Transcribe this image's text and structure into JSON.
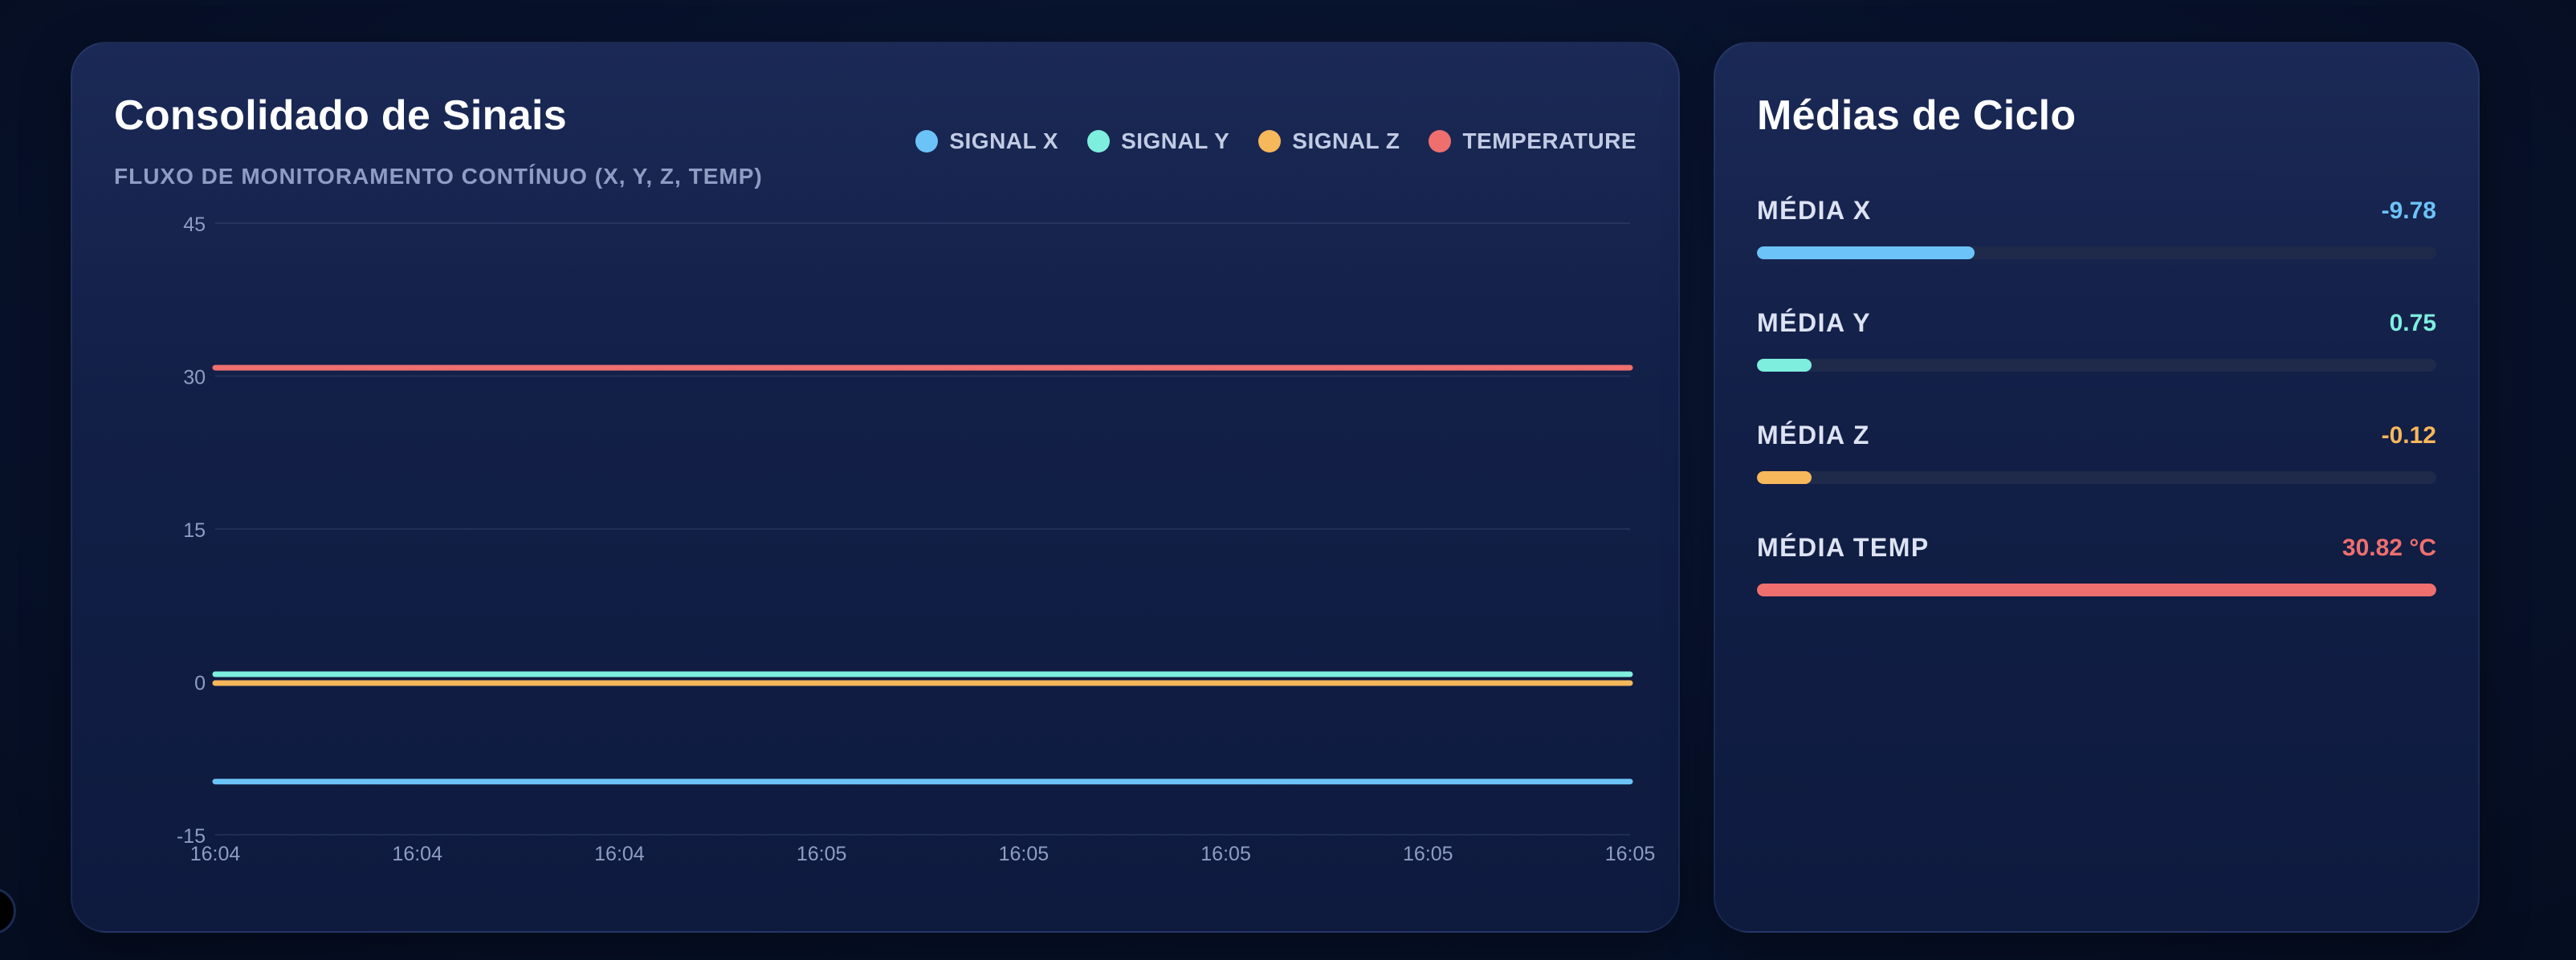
{
  "chart_card": {
    "title": "Consolidado de Sinais",
    "subtitle": "FLUXO DE MONITORAMENTO CONTÍNUO (X, Y, Z, TEMP)"
  },
  "legend": [
    {
      "label": "SIGNAL X",
      "color": "#6cc3f7"
    },
    {
      "label": "SIGNAL Y",
      "color": "#7eeede"
    },
    {
      "label": "SIGNAL Z",
      "color": "#f7b75b"
    },
    {
      "label": "TEMPERATURE",
      "color": "#ef6f6f"
    }
  ],
  "chart_data": {
    "type": "line",
    "x": [
      "16:04",
      "16:04",
      "16:04",
      "16:05",
      "16:05",
      "16:05",
      "16:05",
      "16:05"
    ],
    "ylim": [
      -15,
      45
    ],
    "yticks": [
      45,
      30,
      15,
      0,
      -15
    ],
    "grid": true,
    "legend_position": "top-right",
    "series": [
      {
        "name": "SIGNAL X",
        "color": "#6cc3f7",
        "values": [
          -9.78,
          -9.78,
          -9.78,
          -9.78,
          -9.78,
          -9.78,
          -9.78,
          -9.78
        ]
      },
      {
        "name": "SIGNAL Y",
        "color": "#7eeede",
        "values": [
          0.75,
          0.75,
          0.75,
          0.75,
          0.75,
          0.75,
          0.75,
          0.75
        ]
      },
      {
        "name": "SIGNAL Z",
        "color": "#f7b75b",
        "values": [
          -0.12,
          -0.12,
          -0.12,
          -0.12,
          -0.12,
          -0.12,
          -0.12,
          -0.12
        ]
      },
      {
        "name": "TEMPERATURE",
        "color": "#ef6f6f",
        "values": [
          30.82,
          30.82,
          30.82,
          30.82,
          30.82,
          30.82,
          30.82,
          30.82
        ]
      }
    ]
  },
  "averages_card": {
    "title": "Médias de Ciclo",
    "items": [
      {
        "label": "MÉDIA X",
        "value": "-9.78",
        "color": "#6cc3f7",
        "fill_fraction": 0.32
      },
      {
        "label": "MÉDIA Y",
        "value": "0.75",
        "color": "#7eeede",
        "fill_fraction": 0.08
      },
      {
        "label": "MÉDIA Z",
        "value": "-0.12",
        "color": "#f7b75b",
        "fill_fraction": 0.08
      },
      {
        "label": "MÉDIA TEMP",
        "value": "30.82 °C",
        "color": "#ef6f6f",
        "fill_fraction": 1.0
      }
    ]
  }
}
